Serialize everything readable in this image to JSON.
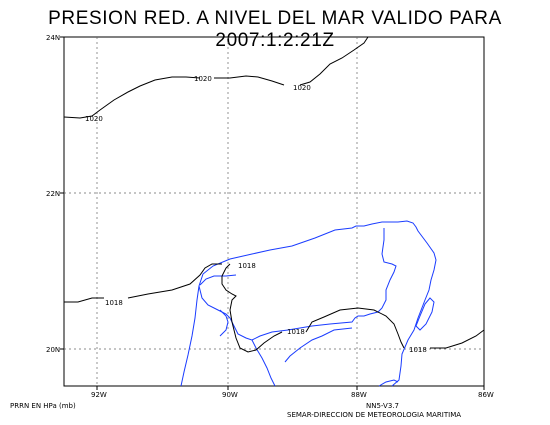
{
  "title": "PRESION RED. A NIVEL DEL MAR VALIDO PARA 2007:1:2:21Z",
  "map": {
    "lat_labels": [
      "24N",
      "22N",
      "20N"
    ],
    "lon_labels": [
      "92W",
      "90W",
      "88W",
      "86W"
    ],
    "isobar_labels": {
      "top_left": "1020",
      "top_mid": "1020",
      "top_right": "1020",
      "inner": "1018",
      "left": "1018",
      "mid": "1018",
      "right": "1018"
    },
    "colors": {
      "coastline": "#1a3cff",
      "isobar": "#000000",
      "grid": "#666666"
    }
  },
  "footer": {
    "left": "PRRN EN HPa (mb)",
    "version": "NN5-V3.7",
    "agency": "SEMAR-DIRECCION DE METEOROLOGIA MARITIMA"
  }
}
